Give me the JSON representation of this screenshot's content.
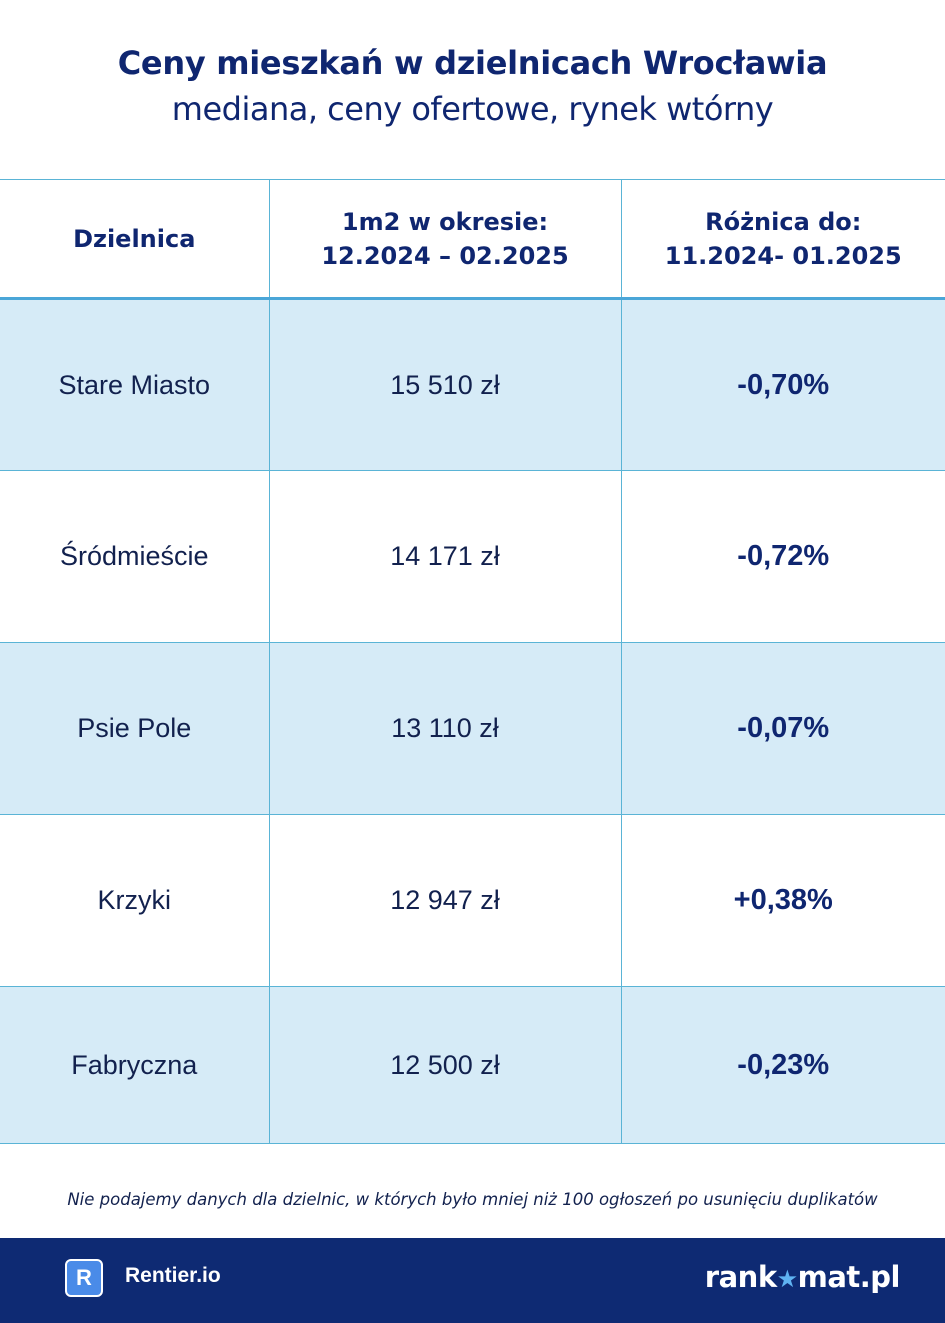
{
  "header": {
    "title": "Ceny mieszkań w dzielnicach Wrocławia",
    "subtitle": "mediana, ceny ofertowe, rynek wtórny"
  },
  "table": {
    "columns": [
      {
        "line1": "Dzielnica",
        "line2": ""
      },
      {
        "line1": "1m2 w okresie:",
        "line2": "12.2024 – 02.2025"
      },
      {
        "line1": "Różnica do:",
        "line2": "11.2024- 01.2025"
      }
    ],
    "rows": [
      {
        "district": "Stare Miasto",
        "price": "15 510 zł",
        "diff": "-0,70%"
      },
      {
        "district": "Śródmieście",
        "price": "14 171 zł",
        "diff": "-0,72%"
      },
      {
        "district": "Psie Pole",
        "price": "13 110 zł",
        "diff": "-0,07%"
      },
      {
        "district": "Krzyki",
        "price": "12 947 zł",
        "diff": "+0,38%"
      },
      {
        "district": "Fabryczna",
        "price": "12 500 zł",
        "diff": "-0,23%"
      }
    ]
  },
  "footnote": "Nie podajemy danych dla dzielnic, w których było mniej niż 100 ogłoszeń po usunięciu duplikatów",
  "footer": {
    "rentier_logo_letter": "R",
    "rentier_name": "Rentier.io",
    "rankomat_prefix": "rank",
    "rankomat_star": "★",
    "rankomat_suffix": "mat.pl"
  },
  "colors": {
    "title": "#0f2670",
    "row_shade": "#d6ebf7",
    "border": "#5ab4d6",
    "footer_bg": "#0e2a73"
  }
}
